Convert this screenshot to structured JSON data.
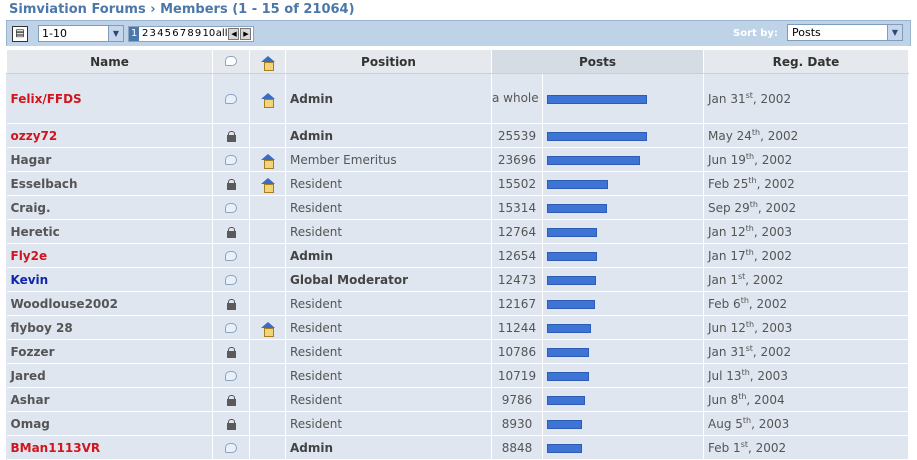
{
  "breadcrumb": {
    "forum": "Simviation Forums",
    "separator": "›",
    "page": "Members (1 - 15 of 21064)"
  },
  "toolbar": {
    "icon": "page-icon",
    "range_select": "1-10",
    "pager": {
      "current": "1",
      "pages": [
        "2",
        "3",
        "4",
        "5",
        "6",
        "7",
        "8",
        "9",
        "10"
      ],
      "all_label": "all"
    },
    "sort_label": "Sort by:",
    "sort_value": "Posts"
  },
  "columns": {
    "name": "Name",
    "position": "Position",
    "posts": "Posts",
    "reg_date": "Reg. Date"
  },
  "colors": {
    "admin": "#d2141c",
    "moderator": "#1325a8",
    "bar": "#3e74d6"
  },
  "max_posts_bar": 25539,
  "members": [
    {
      "name": "Felix/FFDS",
      "role": "admin",
      "status_icon": "speech-bubble-icon",
      "home_icon": true,
      "position": "Admin",
      "posts_text": "a whole lot",
      "posts": 25539,
      "date": "Jan 31",
      "suffix": "st",
      "year": ", 2002"
    },
    {
      "name": "ozzy72",
      "role": "admin",
      "status_icon": "lock-icon",
      "home_icon": false,
      "position": "Admin",
      "posts_text": "25539",
      "posts": 25539,
      "date": "May 24",
      "suffix": "th",
      "year": ", 2002"
    },
    {
      "name": "Hagar",
      "role": "member",
      "status_icon": "speech-bubble-icon",
      "home_icon": true,
      "position": "Member Emeritus",
      "posts_text": "23696",
      "posts": 23696,
      "date": "Jun 19",
      "suffix": "th",
      "year": ", 2002"
    },
    {
      "name": "Esselbach",
      "role": "member",
      "status_icon": "lock-icon",
      "home_icon": true,
      "position": "Resident",
      "posts_text": "15502",
      "posts": 15502,
      "date": "Feb 25",
      "suffix": "th",
      "year": ", 2002"
    },
    {
      "name": "Craig.",
      "role": "member",
      "status_icon": "speech-bubble-icon",
      "home_icon": false,
      "position": "Resident",
      "posts_text": "15314",
      "posts": 15314,
      "date": "Sep 29",
      "suffix": "th",
      "year": ", 2002"
    },
    {
      "name": "Heretic",
      "role": "member",
      "status_icon": "lock-icon",
      "home_icon": false,
      "position": "Resident",
      "posts_text": "12764",
      "posts": 12764,
      "date": "Jan 12",
      "suffix": "th",
      "year": ", 2003"
    },
    {
      "name": "Fly2e",
      "role": "admin",
      "status_icon": "speech-bubble-icon",
      "home_icon": false,
      "position": "Admin",
      "posts_text": "12654",
      "posts": 12654,
      "date": "Jan 17",
      "suffix": "th",
      "year": ", 2002"
    },
    {
      "name": "Kevin",
      "role": "moderator",
      "status_icon": "speech-bubble-icon",
      "home_icon": false,
      "position": "Global Moderator",
      "posts_text": "12473",
      "posts": 12473,
      "date": "Jan 1",
      "suffix": "st",
      "year": ", 2002"
    },
    {
      "name": "Woodlouse2002",
      "role": "member",
      "status_icon": "lock-icon",
      "home_icon": false,
      "position": "Resident",
      "posts_text": "12167",
      "posts": 12167,
      "date": "Feb 6",
      "suffix": "th",
      "year": ", 2002"
    },
    {
      "name": "flyboy 28",
      "role": "member",
      "status_icon": "speech-bubble-icon",
      "home_icon": true,
      "position": "Resident",
      "posts_text": "11244",
      "posts": 11244,
      "date": "Jun 12",
      "suffix": "th",
      "year": ", 2003"
    },
    {
      "name": "Fozzer",
      "role": "member",
      "status_icon": "lock-icon",
      "home_icon": false,
      "position": "Resident",
      "posts_text": "10786",
      "posts": 10786,
      "date": "Jan 31",
      "suffix": "st",
      "year": ", 2002"
    },
    {
      "name": "Jared",
      "role": "member",
      "status_icon": "speech-bubble-icon",
      "home_icon": false,
      "position": "Resident",
      "posts_text": "10719",
      "posts": 10719,
      "date": "Jul 13",
      "suffix": "th",
      "year": ", 2003"
    },
    {
      "name": "Ashar",
      "role": "member",
      "status_icon": "lock-icon",
      "home_icon": false,
      "position": "Resident",
      "posts_text": "9786",
      "posts": 9786,
      "date": "Jun 8",
      "suffix": "th",
      "year": ", 2004"
    },
    {
      "name": "Omag",
      "role": "member",
      "status_icon": "lock-icon",
      "home_icon": false,
      "position": "Resident",
      "posts_text": "8930",
      "posts": 8930,
      "date": "Aug 5",
      "suffix": "th",
      "year": ", 2003"
    },
    {
      "name": "BMan1113VR",
      "role": "admin",
      "status_icon": "speech-bubble-icon",
      "home_icon": false,
      "position": "Admin",
      "posts_text": "8848",
      "posts": 8848,
      "date": "Feb 1",
      "suffix": "st",
      "year": ", 2002"
    }
  ]
}
